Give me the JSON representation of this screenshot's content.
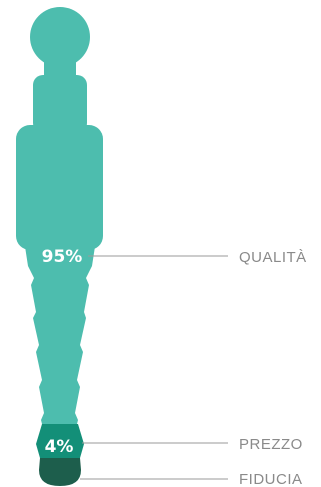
{
  "segments": [
    {
      "value": "95%",
      "label": "QUALITÀ",
      "color": "#4dbdae"
    },
    {
      "value": "4%",
      "label": "PREZZO",
      "color": "#138f78"
    },
    {
      "value": "",
      "label": "FIDUCIA",
      "color": "#1d5e4c"
    }
  ]
}
